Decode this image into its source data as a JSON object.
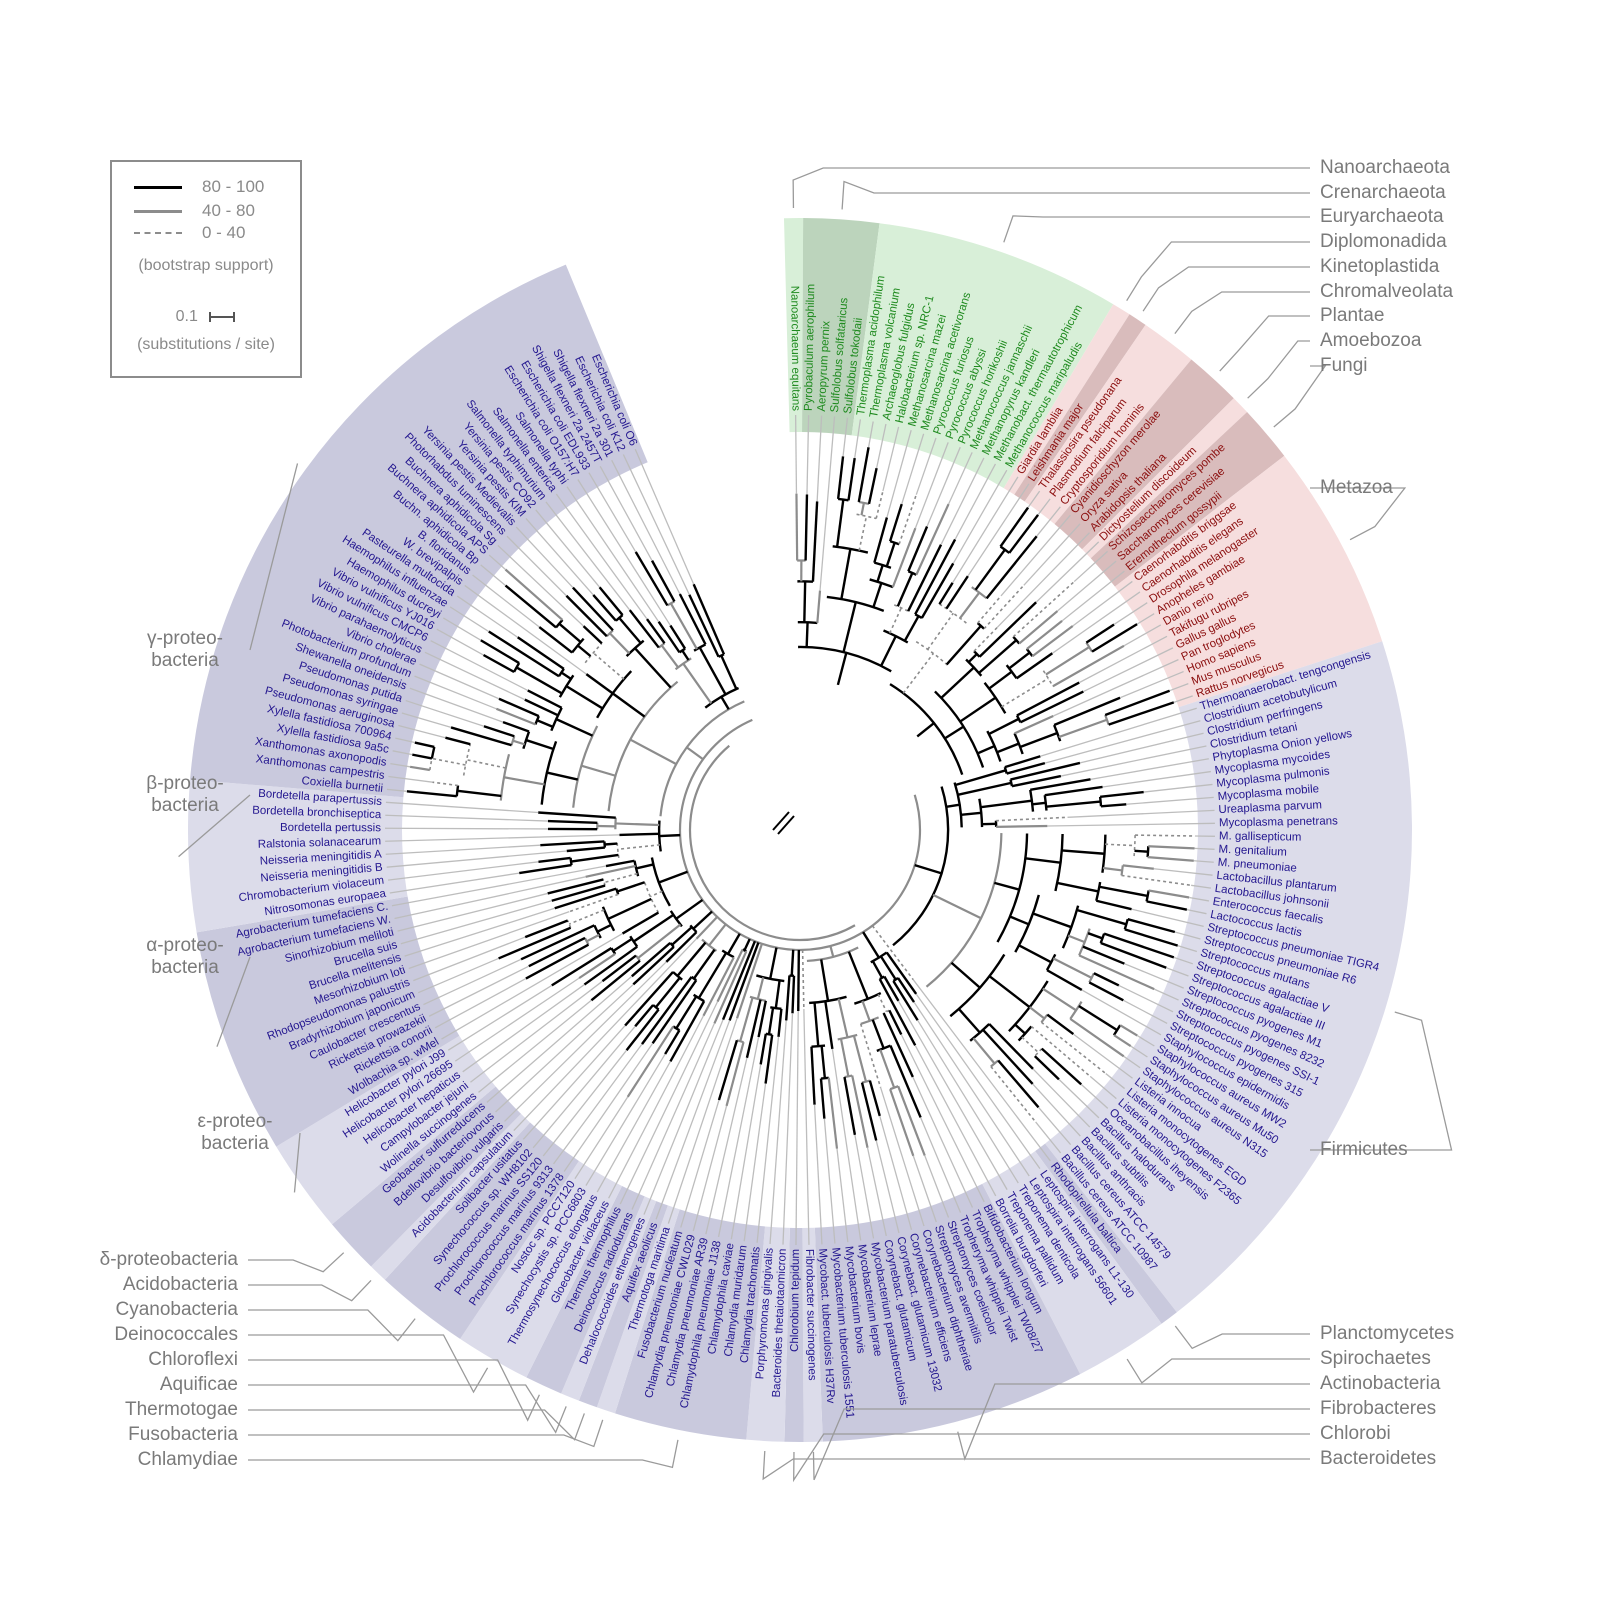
{
  "legend": {
    "items": [
      {
        "label": "80 - 100",
        "color": "#000000",
        "style": "solid"
      },
      {
        "label": "40 - 80",
        "color": "#8c8c8c",
        "style": "solid"
      },
      {
        "label": "0 - 40",
        "color": "#8c8c8c",
        "style": "dashed"
      }
    ],
    "support_caption": "(bootstrap support)",
    "scale_value": "0.1",
    "scale_caption": "(substitutions / site)"
  },
  "colors": {
    "archaea_fill": "#d8efd8",
    "archaea_dark": "#bcd4bc",
    "archaea_text": "#1e8a1e",
    "eukarya_fill": "#f6dede",
    "eukarya_dark": "#d9bcbc",
    "eukarya_text": "#8b0e0e",
    "bacteria_fill": "#c9c9dd",
    "bacteria_light": "#dcdcea",
    "bacteria_text": "#23168f",
    "label_gray": "#7a7a7a"
  },
  "clades": [
    {
      "name": "Nanoarchaeota",
      "domain": "archaea",
      "shade": "light",
      "taxa": [
        "Nanoarchaeum equitans"
      ]
    },
    {
      "name": "Crenarchaeota",
      "domain": "archaea",
      "shade": "dark",
      "taxa": [
        "Pyrobaculum aerophilum",
        "Aeropyrum pernix",
        "Sulfolobus solfataricus",
        "Sulfolobus tokodaii"
      ]
    },
    {
      "name": "Euryarchaeota",
      "domain": "archaea",
      "shade": "light",
      "taxa": [
        "Thermoplasma acidophilum",
        "Thermoplasma volcanium",
        "Archaeoglobus fulgidus",
        "Halobacterium sp. NRC-1",
        "Methanosarcina mazei",
        "Methanosarcina acetivorans",
        "Pyrococcus furiosus",
        "Pyrococcus abyssi",
        "Pyrococcus horikoshii",
        "Methanococcus jannaschii",
        "Methanopyrus kandleri",
        "Methanobact. thermautotrophicum",
        "Methanococcus maripaludis"
      ]
    },
    {
      "name": "Diplomonadida",
      "domain": "eukarya",
      "shade": "light",
      "taxa": [
        "Giardia lamblia"
      ]
    },
    {
      "name": "Kinetoplastida",
      "domain": "eukarya",
      "shade": "dark",
      "taxa": [
        "Leishmania major"
      ]
    },
    {
      "name": "Chromalveolata",
      "domain": "eukarya",
      "shade": "light",
      "taxa": [
        "Thalassiosira pseudonana",
        "Plasmodium falciparum",
        "Cryptosporidium hominis"
      ]
    },
    {
      "name": "Plantae",
      "domain": "eukarya",
      "shade": "dark",
      "taxa": [
        "Cyanidioschyzon merolae",
        "Oryza sativa",
        "Arabidopsis thaliana"
      ]
    },
    {
      "name": "Amoebozoa",
      "domain": "eukarya",
      "shade": "light",
      "taxa": [
        "Dictyostelium discoideum"
      ]
    },
    {
      "name": "Fungi",
      "domain": "eukarya",
      "shade": "dark",
      "taxa": [
        "Schizosaccharomyces pombe",
        "Saccharomyces cerevisiae",
        "Eremothecium gossypii"
      ]
    },
    {
      "name": "Metazoa",
      "domain": "eukarya",
      "shade": "light",
      "taxa": [
        "Caenorhabditis briggsae",
        "Caenorhabditis elegans",
        "Drosophila melanogaster",
        "Anopheles gambiae",
        "Danio rerio",
        "Takifugu rubripes",
        "Gallus gallus",
        "Pan troglodytes",
        "Homo sapiens",
        "Mus musculus",
        "Rattus norvegicus"
      ]
    },
    {
      "name": "Firmicutes",
      "domain": "bacteria",
      "shade": "light",
      "taxa": [
        "Thermoanaerobact. tengcongensis",
        "Clostridium acetobutylicum",
        "Clostridium perfringens",
        "Clostridium tetani",
        "Phytoplasma Onion yellows",
        "Mycoplasma mycoides",
        "Mycoplasma pulmonis",
        "Mycoplasma mobile",
        "Ureaplasma parvum",
        "Mycoplasma penetrans",
        "M. gallisepticum",
        "M. genitalium",
        "M. pneumoniae",
        "Lactobacillus plantarum",
        "Lactobacillus johnsonii",
        "Enterococcus faecalis",
        "Lactococcus lactis",
        "Streptococcus pneumoniae TIGR4",
        "Streptococcus pneumoniae R6",
        "Streptococcus mutans",
        "Streptococcus agalactiae V",
        "Streptococcus agalactiae III",
        "Streptococcus pyogenes M1",
        "Streptococcus pyogenes 8232",
        "Streptococcus pyogenes SSI-1",
        "Streptococcus pyogenes 315",
        "Staphylococcus epidermidis",
        "Staphylococcus aureus MW2",
        "Staphylococcus aureus Mu50",
        "Staphylococcus aureus N315",
        "Listeria innocua",
        "Listeria monocytogenes EGD",
        "Listeria monocytogenes F2365",
        "Oceanobacillus iheyensis",
        "Bacillus halodurans",
        "Bacillus subtilis",
        "Bacillus anthracis",
        "Bacillus cereus ATCC 14579",
        "Bacillus cereus ATCC 10987"
      ]
    },
    {
      "name": "Planctomycetes",
      "domain": "bacteria",
      "shade": "dark",
      "taxa": [
        "Rhodopirellula baltica"
      ]
    },
    {
      "name": "Spirochaetes",
      "domain": "bacteria",
      "shade": "light",
      "taxa": [
        "Leptospira interrogans L1-130",
        "Leptospira interrogans 56601",
        "Treponema denticola",
        "Treponema pallidum",
        "Borrelia burgdorferi"
      ]
    },
    {
      "name": "Actinobacteria",
      "domain": "bacteria",
      "shade": "dark",
      "taxa": [
        "Bifidobacterium longum",
        "Tropheryma whipplei TW08/27",
        "Tropheryma whipplei Twist",
        "Streptomyces coelicolor",
        "Streptomyces avermitilis",
        "Corynebacterium diphtheriae",
        "Corynebacterium efficiens",
        "Corynebact. glutamicum 13032",
        "Corynebact. glutamicum",
        "Mycobacterium paratuberculosis",
        "Mycobacterium leprae",
        "Mycobacterium bovis",
        "Mycobacterium tuberculosis 1551",
        "Mycobact. tuberculosis H37Rv"
      ]
    },
    {
      "name": "Fibrobacteres",
      "domain": "bacteria",
      "shade": "light",
      "taxa": [
        "Fibrobacter succinogenes"
      ]
    },
    {
      "name": "Chlorobi",
      "domain": "bacteria",
      "shade": "dark",
      "taxa": [
        "Chlorobium tepidum"
      ]
    },
    {
      "name": "Bacteroidetes",
      "domain": "bacteria",
      "shade": "light",
      "taxa": [
        "Bacteroides thetaiotaomicron",
        "Porphyromonas gingivalis"
      ]
    },
    {
      "name": "Chlamydiae",
      "domain": "bacteria",
      "shade": "dark",
      "taxa": [
        "Chlamydia trachomatis",
        "Chlamydia muridarum",
        "Chlamydophila caviae",
        "Chlamydophila pneumoniae J138",
        "Chlamydia pneumoniae AR39",
        "Chlamydia pneumoniae CWL029",
        "Fusobacterium nucleatum"
      ]
    },
    {
      "name": "Fusobacteria",
      "domain": "bacteria",
      "shade": "light",
      "taxa": [
        "Thermotoga maritima"
      ]
    },
    {
      "name": "Thermotogae",
      "domain": "bacteria",
      "shade": "dark",
      "taxa": [
        "Aquifex aeolicus"
      ]
    },
    {
      "name": "Aquificae",
      "domain": "bacteria",
      "shade": "light",
      "taxa": [
        "Dehalococcoides ethenogenes"
      ]
    },
    {
      "name": "Chloroflexi",
      "domain": "bacteria",
      "shade": "dark",
      "taxa": [
        "Deinococcus radiodurans",
        "Thermus thermophilus"
      ]
    },
    {
      "name": "Deinococcales",
      "domain": "bacteria",
      "shade": "light",
      "taxa": [
        "Gloeobacter violaceus",
        "Thermosynechococcus elongatus",
        "Synechocystis sp. PCC6803",
        "Nostoc sp. PCC7120"
      ]
    },
    {
      "name": "Cyanobacteria",
      "domain": "bacteria",
      "shade": "dark",
      "taxa": [
        "Prochlorococcus marinus 1378",
        "Prochlorococcus marinus 9313",
        "Prochlorococcus marinus SS120",
        "Synechococcus sp. WH8102",
        "Solibacter usitatus"
      ]
    },
    {
      "name": "Acidobacteria",
      "domain": "bacteria",
      "shade": "light",
      "taxa": [
        "Acidobacterium capsulatum"
      ]
    },
    {
      "name": "δ-proteobacteria",
      "domain": "bacteria",
      "shade": "dark",
      "taxa": [
        "Desulfovibrio vulgaris",
        "Bdellovibrio bacteriovorus",
        "Geobacter sulfurreducens"
      ]
    },
    {
      "name": "ε-proteo- bacteria",
      "domain": "bacteria",
      "shade": "light",
      "taxa": [
        "Wolinella succinogenes",
        "Campylobacter jejuni",
        "Helicobacter hepaticus",
        "Helicobacter pylori 26695",
        "Helicobacter pylori J99"
      ]
    },
    {
      "name": "α-proteo- bacteria",
      "domain": "bacteria",
      "shade": "dark",
      "taxa": [
        "Wolbachia sp. wMel",
        "Rickettsia conorii",
        "Rickettsia prowazekii",
        "Caulobacter crescentus",
        "Bradyrhizobium japonicum",
        "Rhodopseudomonas palustris",
        "Mesorhizobium loti",
        "Brucella melitensis",
        "Brucella suis",
        "Sinorhizobium meliloti",
        "Agrobacterium tumefaciens W.",
        "Agrobacterium tumefaciens C."
      ]
    },
    {
      "name": "β-proteo- bacteria",
      "domain": "bacteria",
      "shade": "light",
      "taxa": [
        "Nitrosomonas europaea",
        "Chromobacterium violaceum",
        "Neisseria meningitidis B",
        "Neisseria meningitidis A",
        "Ralstonia solanacearum",
        "Bordetella pertussis",
        "Bordetella bronchiseptica",
        "Bordetella parapertussis"
      ]
    },
    {
      "name": "γ-proteo- bacteria",
      "domain": "bacteria",
      "shade": "dark",
      "taxa": [
        "Coxiella burnetii",
        "Xanthomonas campestris",
        "Xanthomonas axonopodis",
        "Xylella fastidiosa 9a5c",
        "Xylella fastidiosa 700964",
        "Pseudomonas aeruginosa",
        "Pseudomonas syringae",
        "Pseudomonas putida",
        "Shewanella oneidensis",
        "Photobacterium profundum",
        "Vibrio cholerae",
        "Vibrio parahaemolyticus",
        "Vibrio vulnificus CMCP6",
        "Vibrio vulnificus YJ016",
        "Haemophilus ducreyi",
        "Haemophilus influenzae",
        "Pasteurella multocida",
        "W. brevipalpis",
        "B. floridanus",
        "Buchn. aphidicola Bp",
        "Buchnera aphidicola APS",
        "Buchnera aphidicola Sg",
        "Photorhabdus luminescens",
        "Yersinia pestis Medievalis",
        "Yersinia pestis KIM",
        "Yersinia pestis CO92",
        "Salmonella typhimurium",
        "Salmonella enterica",
        "Salmonella typhi",
        "Escherichia coli O157:H7",
        "Escherichia coli EDL933",
        "Shigella flexneri 2a 2457T",
        "Shigella flexneri 2a 301",
        "Escherichia coli K12",
        "Escherichia coli O6"
      ]
    }
  ],
  "labels": [
    {
      "text": "Nanoarchaeota",
      "anchor": "right-top"
    },
    {
      "text": "Crenarchaeota",
      "anchor": "right-top"
    },
    {
      "text": "Euryarchaeota",
      "anchor": "right-top"
    },
    {
      "text": "Diplomonadida",
      "anchor": "right-top"
    },
    {
      "text": "Kinetoplastida",
      "anchor": "right-top"
    },
    {
      "text": "Chromalveolata",
      "anchor": "right-top"
    },
    {
      "text": "Plantae",
      "anchor": "right-top"
    },
    {
      "text": "Amoebozoa",
      "anchor": "right-top"
    },
    {
      "text": "Fungi",
      "anchor": "right-top"
    },
    {
      "text": "Metazoa",
      "anchor": "right"
    },
    {
      "text": "Firmicutes",
      "anchor": "right"
    },
    {
      "text": "Planctomycetes",
      "anchor": "right-bottom"
    },
    {
      "text": "Spirochaetes",
      "anchor": "right-bottom"
    },
    {
      "text": "Actinobacteria",
      "anchor": "right-bottom"
    },
    {
      "text": "Fibrobacteres",
      "anchor": "right-bottom"
    },
    {
      "text": "Chlorobi",
      "anchor": "right-bottom"
    },
    {
      "text": "Bacteroidetes",
      "anchor": "right-bottom"
    },
    {
      "text": "δ-proteobacteria",
      "anchor": "left-bottom"
    },
    {
      "text": "Acidobacteria",
      "anchor": "left-bottom"
    },
    {
      "text": "Cyanobacteria",
      "anchor": "left-bottom"
    },
    {
      "text": "Deinococcales",
      "anchor": "left-bottom"
    },
    {
      "text": "Chloroflexi",
      "anchor": "left-bottom"
    },
    {
      "text": "Aquificae",
      "anchor": "left-bottom"
    },
    {
      "text": "Thermotogae",
      "anchor": "left-bottom"
    },
    {
      "text": "Fusobacteria",
      "anchor": "left-bottom"
    },
    {
      "text": "Chlamydiae",
      "anchor": "left-bottom"
    },
    {
      "text": "ε-proteo- bacteria",
      "anchor": "left"
    },
    {
      "text": "α-proteo- bacteria",
      "anchor": "left"
    },
    {
      "text": "β-proteo- bacteria",
      "anchor": "left"
    },
    {
      "text": "γ-proteo- bacteria",
      "anchor": "left"
    }
  ]
}
